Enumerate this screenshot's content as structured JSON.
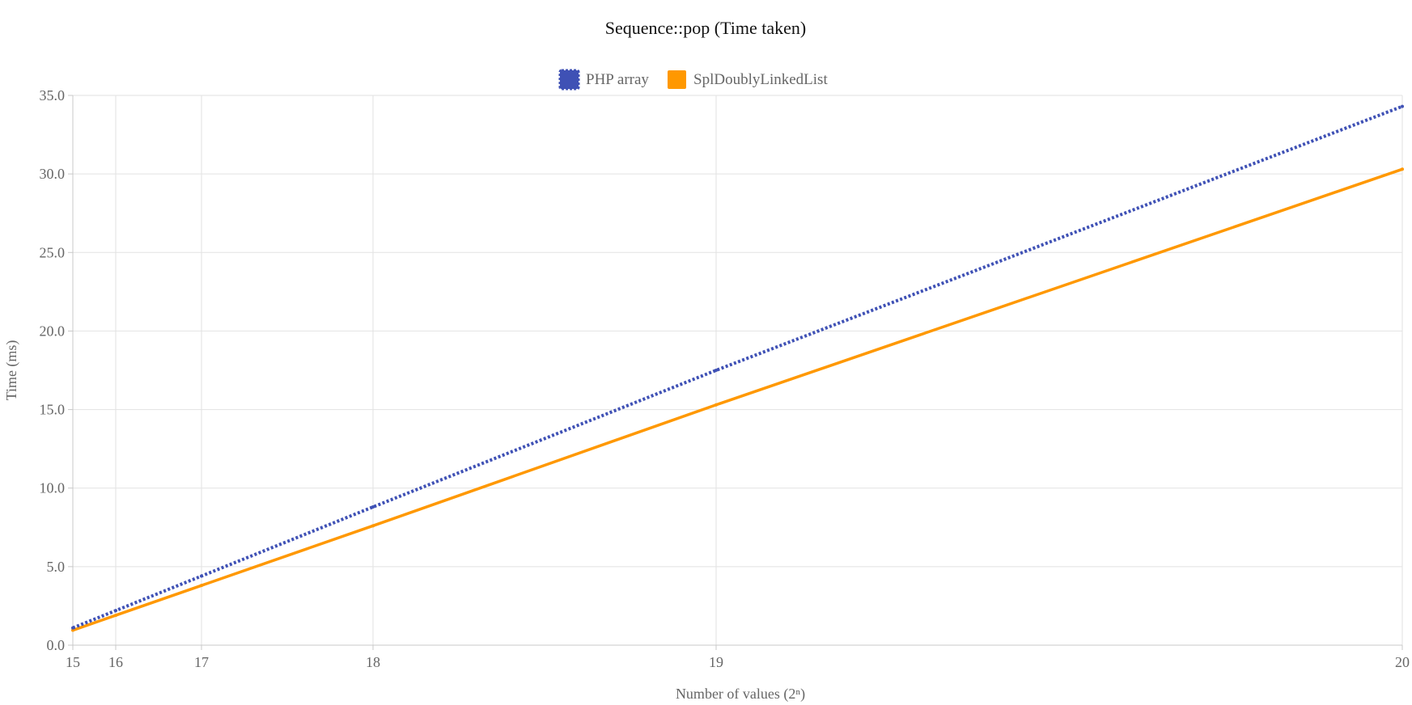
{
  "chart_data": {
    "type": "line",
    "title": "Sequence::pop (Time taken)",
    "xlabel": "Number of values (2ⁿ)",
    "ylabel": "Time (ms)",
    "xlim": [
      15,
      20
    ],
    "ylim": [
      0,
      35
    ],
    "x_ticks": [
      "15",
      "16",
      "17",
      "18",
      "19",
      "20"
    ],
    "y_ticks": [
      "0.0",
      "5.0",
      "10.0",
      "15.0",
      "20.0",
      "25.0",
      "30.0",
      "35.0"
    ],
    "grid": true,
    "legend_position": "top",
    "series": [
      {
        "name": "PHP array",
        "color": "#3f51b5",
        "style": "dotted",
        "x": [
          15,
          16,
          17,
          18,
          19,
          20
        ],
        "y": [
          1.1,
          2.2,
          4.4,
          8.8,
          17.5,
          34.3
        ]
      },
      {
        "name": "SplDoublyLinkedList",
        "color": "#ff9800",
        "style": "solid",
        "x": [
          15,
          16,
          17,
          18,
          19,
          20
        ],
        "y": [
          0.95,
          1.9,
          3.8,
          7.6,
          15.3,
          30.3
        ]
      }
    ]
  }
}
